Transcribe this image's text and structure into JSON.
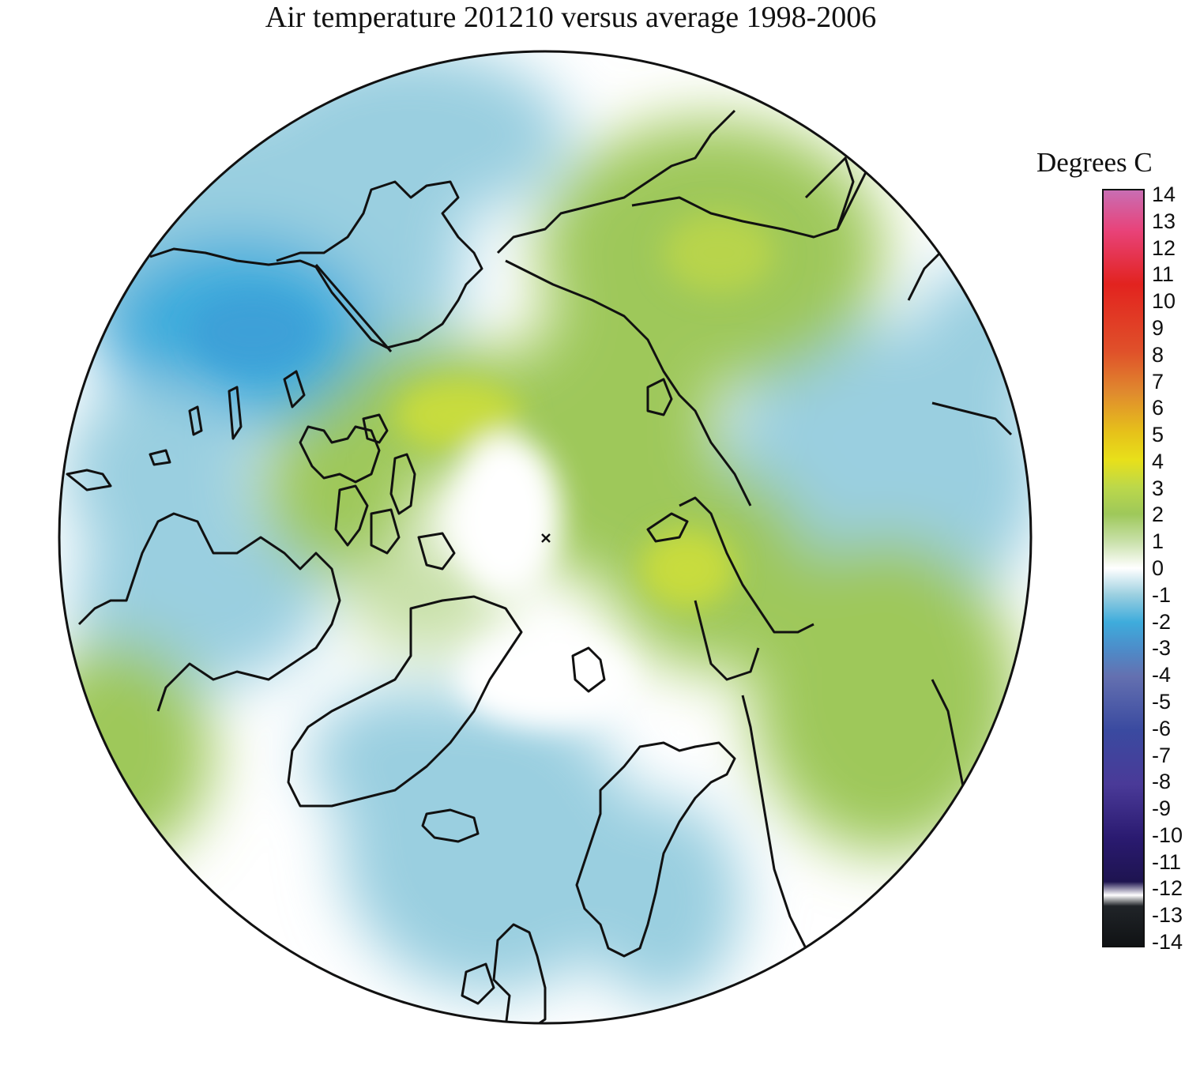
{
  "title": "Air temperature 201210 versus average 1998-2006",
  "colorbar": {
    "title": "Degrees C",
    "ticks": [
      "14",
      "13",
      "12",
      "11",
      "10",
      "9",
      "8",
      "7",
      "6",
      "5",
      "4",
      "3",
      "2",
      "1",
      "0",
      "-1",
      "-2",
      "-3",
      "-4",
      "-5",
      "-6",
      "-7",
      "-8",
      "-9",
      "-10",
      "-11",
      "-12",
      "-13",
      "-14"
    ],
    "range": [
      -14,
      14
    ],
    "stops": [
      {
        "v": 14,
        "c": "#c86eb4"
      },
      {
        "v": 12.5,
        "c": "#e8437a"
      },
      {
        "v": 10.5,
        "c": "#e2231f"
      },
      {
        "v": 8,
        "c": "#e0512a"
      },
      {
        "v": 6.5,
        "c": "#e08a2e"
      },
      {
        "v": 5,
        "c": "#e6c21a"
      },
      {
        "v": 4,
        "c": "#e8e01a"
      },
      {
        "v": 3,
        "c": "#bcd84a"
      },
      {
        "v": 2,
        "c": "#9ec85a"
      },
      {
        "v": 1,
        "c": "#c8e0a8"
      },
      {
        "v": 0,
        "c": "#ffffff"
      },
      {
        "v": -1,
        "c": "#9acfe0"
      },
      {
        "v": -2,
        "c": "#3eacdc"
      },
      {
        "v": -3,
        "c": "#4d8cc9"
      },
      {
        "v": -4,
        "c": "#6470b0"
      },
      {
        "v": -6,
        "c": "#3a4aa0"
      },
      {
        "v": -8,
        "c": "#4a3a98"
      },
      {
        "v": -10,
        "c": "#2a1a70"
      },
      {
        "v": -11.6,
        "c": "#1e1450"
      },
      {
        "v": -12.1,
        "c": "#ffffff"
      },
      {
        "v": -12.5,
        "c": "#202428"
      },
      {
        "v": -14,
        "c": "#101214"
      }
    ]
  },
  "map": {
    "projection": "north polar stereographic",
    "ocean_land_colors": {
      "cold": "#9acfe0",
      "cold_deep": "#3eacdc",
      "warm": "#9ec85a",
      "warm_strong": "#c8dc3c",
      "neutral": "#ffffff",
      "coastline": "#111111"
    }
  }
}
